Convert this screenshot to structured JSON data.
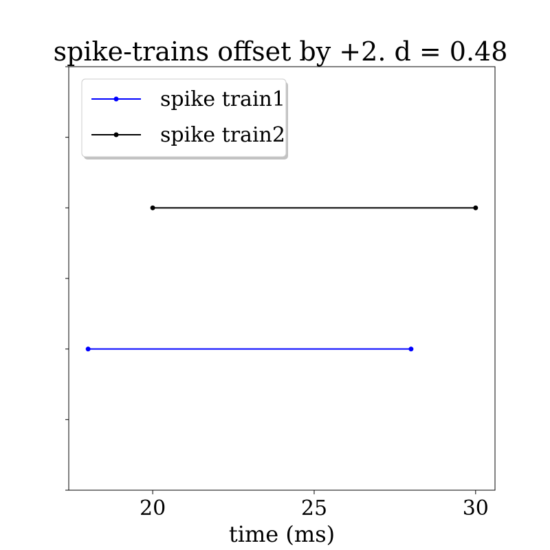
{
  "chart_data": {
    "type": "line",
    "title": "spike-trains offset by +2. d = 0.48",
    "xlabel": "time (ms)",
    "ylabel": "",
    "xlim": [
      17.4,
      30.6
    ],
    "ylim": [
      0,
      6
    ],
    "x_ticks": [
      20,
      25,
      30
    ],
    "x_tick_labels": [
      "20",
      "25",
      "30"
    ],
    "y_ticks": [
      0,
      1,
      2,
      3,
      4,
      5,
      6
    ],
    "grid": false,
    "legend_position": "top-left",
    "series": [
      {
        "name": "spike train1",
        "color": "#0000ff",
        "x": [
          18,
          28
        ],
        "y": [
          2,
          2
        ]
      },
      {
        "name": "spike train2",
        "color": "#000000",
        "x": [
          20,
          30
        ],
        "y": [
          4,
          4
        ]
      }
    ]
  }
}
